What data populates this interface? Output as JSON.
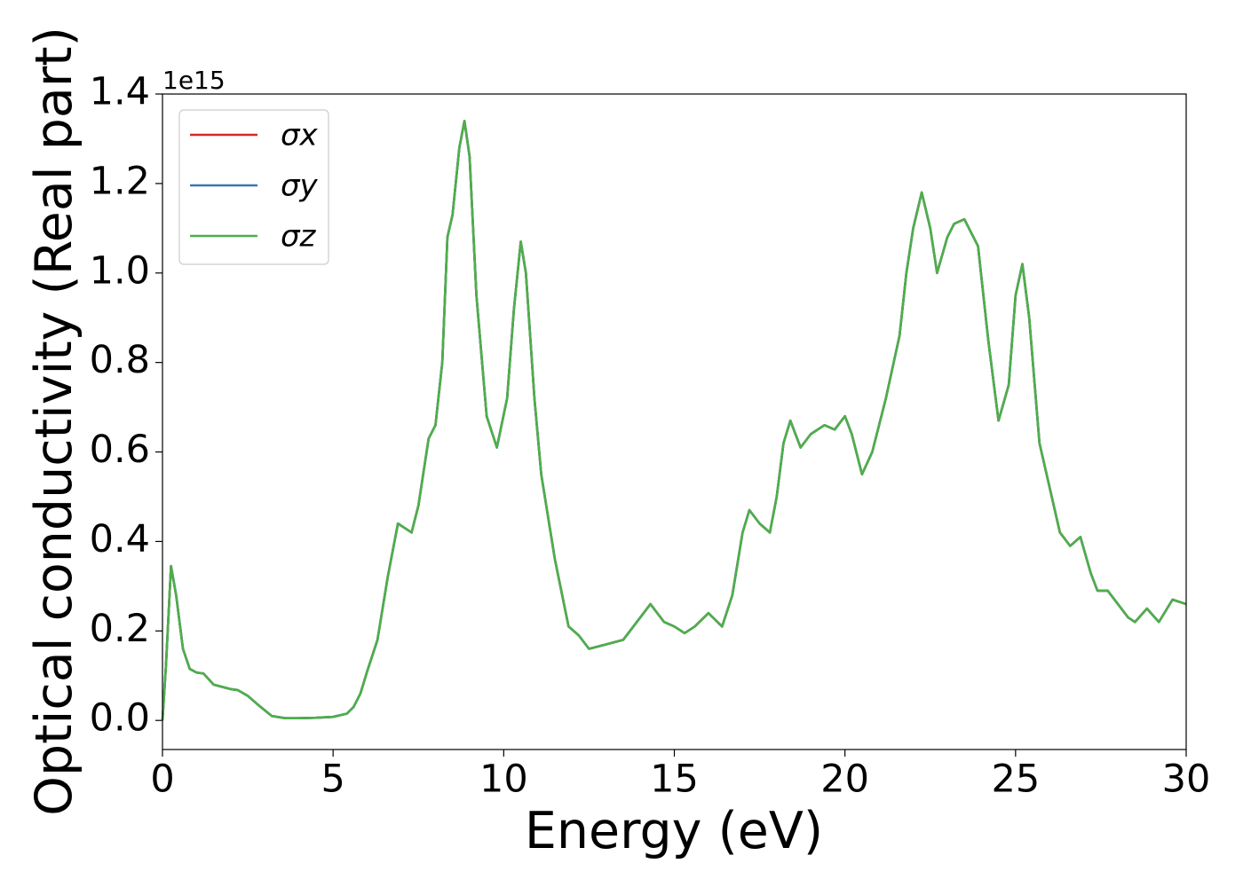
{
  "chart_data": {
    "type": "line",
    "x_label": "Energy (eV)",
    "y_label": "Optical conductivity (Real part)",
    "y_offset_label": "1e15",
    "xlim": [
      0,
      30
    ],
    "xticks": [
      0,
      5,
      10,
      15,
      20,
      25,
      30
    ],
    "ylim": [
      -0.065,
      1.4
    ],
    "yticks": [
      {
        "value": 0.0,
        "label": "0.0"
      },
      {
        "value": 0.2,
        "label": "0.2"
      },
      {
        "value": 0.4,
        "label": "0.4"
      },
      {
        "value": 0.6,
        "label": "0.6"
      },
      {
        "value": 0.8,
        "label": "0.8"
      },
      {
        "value": 1.0,
        "label": "1.0"
      },
      {
        "value": 1.2,
        "label": "1.2"
      },
      {
        "value": 1.4,
        "label": "1.4"
      }
    ],
    "legend": "upper left",
    "grid": false,
    "x": [
      0,
      0.1,
      0.25,
      0.4,
      0.6,
      0.8,
      1.0,
      1.2,
      1.5,
      2.0,
      2.2,
      2.5,
      2.8,
      3.2,
      3.6,
      4.0,
      4.5,
      5.0,
      5.4,
      5.6,
      5.8,
      6.0,
      6.3,
      6.6,
      6.9,
      7.1,
      7.3,
      7.5,
      7.8,
      8.0,
      8.2,
      8.35,
      8.5,
      8.7,
      8.85,
      9.0,
      9.2,
      9.5,
      9.8,
      10.1,
      10.3,
      10.5,
      10.65,
      10.9,
      11.1,
      11.5,
      11.9,
      12.2,
      12.5,
      13.0,
      13.5,
      13.8,
      14.3,
      14.7,
      15.0,
      15.3,
      15.6,
      16.0,
      16.4,
      16.7,
      17.0,
      17.2,
      17.5,
      17.8,
      18.0,
      18.2,
      18.4,
      18.7,
      19.0,
      19.4,
      19.7,
      20.0,
      20.2,
      20.5,
      20.8,
      21.2,
      21.6,
      21.8,
      22.0,
      22.25,
      22.5,
      22.7,
      23.0,
      23.2,
      23.5,
      23.9,
      24.2,
      24.5,
      24.8,
      25.0,
      25.2,
      25.4,
      25.7,
      26.0,
      26.3,
      26.6,
      26.9,
      27.2,
      27.4,
      27.7,
      28.0,
      28.3,
      28.5,
      28.85,
      29.2,
      29.6,
      30.0
    ],
    "series": [
      {
        "name": "σx",
        "color": "#d62728",
        "values": [
          0.0,
          0.12,
          0.345,
          0.28,
          0.16,
          0.115,
          0.107,
          0.105,
          0.08,
          0.07,
          0.068,
          0.055,
          0.035,
          0.01,
          0.005,
          0.005,
          0.006,
          0.008,
          0.015,
          0.03,
          0.06,
          0.11,
          0.18,
          0.32,
          0.44,
          0.43,
          0.42,
          0.48,
          0.63,
          0.66,
          0.8,
          1.08,
          1.13,
          1.28,
          1.34,
          1.26,
          0.95,
          0.68,
          0.61,
          0.72,
          0.92,
          1.07,
          1.0,
          0.72,
          0.55,
          0.36,
          0.21,
          0.19,
          0.16,
          0.17,
          0.18,
          0.21,
          0.26,
          0.22,
          0.21,
          0.195,
          0.21,
          0.24,
          0.21,
          0.28,
          0.42,
          0.47,
          0.44,
          0.42,
          0.5,
          0.62,
          0.67,
          0.61,
          0.64,
          0.66,
          0.65,
          0.68,
          0.64,
          0.55,
          0.6,
          0.72,
          0.86,
          1.0,
          1.1,
          1.18,
          1.1,
          1.0,
          1.08,
          1.11,
          1.12,
          1.06,
          0.85,
          0.67,
          0.75,
          0.95,
          1.02,
          0.9,
          0.62,
          0.52,
          0.42,
          0.39,
          0.41,
          0.33,
          0.29,
          0.29,
          0.26,
          0.23,
          0.22,
          0.25,
          0.22,
          0.27,
          0.26
        ]
      },
      {
        "name": "σy",
        "color": "#3a78b0",
        "values": [
          0.0,
          0.12,
          0.345,
          0.28,
          0.16,
          0.115,
          0.107,
          0.105,
          0.08,
          0.07,
          0.068,
          0.055,
          0.035,
          0.01,
          0.005,
          0.005,
          0.006,
          0.008,
          0.015,
          0.03,
          0.06,
          0.11,
          0.18,
          0.32,
          0.44,
          0.43,
          0.42,
          0.48,
          0.63,
          0.66,
          0.8,
          1.08,
          1.13,
          1.28,
          1.34,
          1.26,
          0.95,
          0.68,
          0.61,
          0.72,
          0.92,
          1.07,
          1.0,
          0.72,
          0.55,
          0.36,
          0.21,
          0.19,
          0.16,
          0.17,
          0.18,
          0.21,
          0.26,
          0.22,
          0.21,
          0.195,
          0.21,
          0.24,
          0.21,
          0.28,
          0.42,
          0.47,
          0.44,
          0.42,
          0.5,
          0.62,
          0.67,
          0.61,
          0.64,
          0.66,
          0.65,
          0.68,
          0.64,
          0.55,
          0.6,
          0.72,
          0.86,
          1.0,
          1.1,
          1.18,
          1.1,
          1.0,
          1.08,
          1.11,
          1.12,
          1.06,
          0.85,
          0.67,
          0.75,
          0.95,
          1.02,
          0.9,
          0.62,
          0.52,
          0.42,
          0.39,
          0.41,
          0.33,
          0.29,
          0.29,
          0.26,
          0.23,
          0.22,
          0.25,
          0.22,
          0.27,
          0.26
        ]
      },
      {
        "name": "σz",
        "color": "#4daf4a",
        "values": [
          0.0,
          0.12,
          0.345,
          0.28,
          0.16,
          0.115,
          0.107,
          0.105,
          0.08,
          0.07,
          0.068,
          0.055,
          0.035,
          0.01,
          0.005,
          0.005,
          0.006,
          0.008,
          0.015,
          0.03,
          0.06,
          0.11,
          0.18,
          0.32,
          0.44,
          0.43,
          0.42,
          0.48,
          0.63,
          0.66,
          0.8,
          1.08,
          1.13,
          1.28,
          1.34,
          1.26,
          0.95,
          0.68,
          0.61,
          0.72,
          0.92,
          1.07,
          1.0,
          0.72,
          0.55,
          0.36,
          0.21,
          0.19,
          0.16,
          0.17,
          0.18,
          0.21,
          0.26,
          0.22,
          0.21,
          0.195,
          0.21,
          0.24,
          0.21,
          0.28,
          0.42,
          0.47,
          0.44,
          0.42,
          0.5,
          0.62,
          0.67,
          0.61,
          0.64,
          0.66,
          0.65,
          0.68,
          0.64,
          0.55,
          0.6,
          0.72,
          0.86,
          1.0,
          1.1,
          1.18,
          1.1,
          1.0,
          1.08,
          1.11,
          1.12,
          1.06,
          0.85,
          0.67,
          0.75,
          0.95,
          1.02,
          0.9,
          0.62,
          0.52,
          0.42,
          0.39,
          0.41,
          0.33,
          0.29,
          0.29,
          0.26,
          0.23,
          0.22,
          0.25,
          0.22,
          0.27,
          0.26
        ]
      }
    ]
  }
}
